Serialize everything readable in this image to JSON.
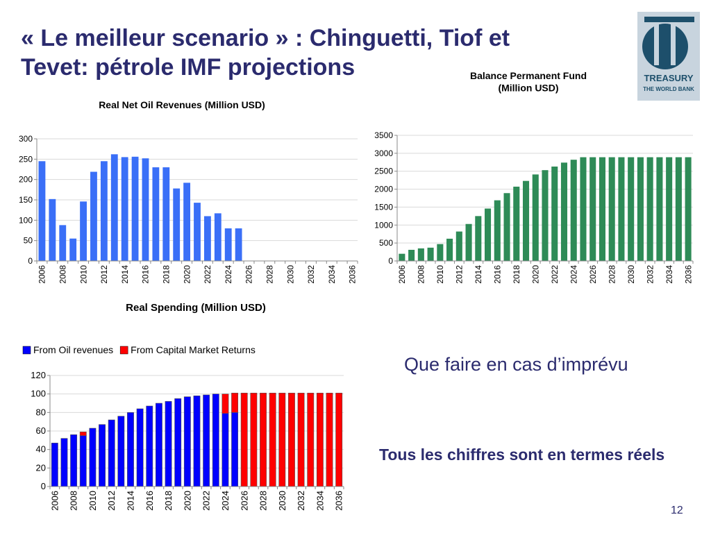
{
  "slide": {
    "title": "« Le meilleur scenario » :  Chinguetti, Tiof et\nTevet:  pétrole IMF projections",
    "subtext": "Que faire en cas d’imprévu",
    "note": "Tous les chiffres sont en termes réels",
    "page_number": "12"
  },
  "logo": {
    "line1": "TREASURY",
    "line2": "THE WORLD BANK",
    "bg_color": "#c8d4de",
    "mark_color": "#1d4f6b"
  },
  "chart_data": [
    {
      "id": "oil",
      "type": "bar",
      "title": "Real Net Oil Revenues (Million USD)",
      "xlabel": "",
      "ylabel": "",
      "categories": [
        "2006",
        "2007",
        "2008",
        "2009",
        "2010",
        "2011",
        "2012",
        "2013",
        "2014",
        "2015",
        "2016",
        "2017",
        "2018",
        "2019",
        "2020",
        "2021",
        "2022",
        "2023",
        "2024",
        "2025",
        "2026",
        "2027",
        "2028",
        "2029",
        "2030",
        "2031",
        "2032",
        "2033",
        "2034",
        "2035",
        "2036"
      ],
      "tick_labels": [
        "2006",
        "2008",
        "2010",
        "2012",
        "2014",
        "2016",
        "2018",
        "2020",
        "2022",
        "2024",
        "2026",
        "2028",
        "2030",
        "2032",
        "2034",
        "2036"
      ],
      "values": [
        245,
        152,
        88,
        55,
        146,
        219,
        245,
        262,
        255,
        256,
        252,
        230,
        230,
        178,
        192,
        143,
        110,
        117,
        80,
        80,
        0,
        0,
        0,
        0,
        0,
        0,
        0,
        0,
        0,
        0,
        0
      ],
      "ylim": [
        0,
        300
      ],
      "yticks": [
        0,
        50,
        100,
        150,
        200,
        250,
        300
      ],
      "color": "#3a6ff7",
      "grid": true
    },
    {
      "id": "fund",
      "type": "bar",
      "title": "Balance Permanent Fund\n(Million USD)",
      "xlabel": "",
      "ylabel": "",
      "categories": [
        "2006",
        "2007",
        "2008",
        "2009",
        "2010",
        "2011",
        "2012",
        "2013",
        "2014",
        "2015",
        "2016",
        "2017",
        "2018",
        "2019",
        "2020",
        "2021",
        "2022",
        "2023",
        "2024",
        "2025",
        "2026",
        "2027",
        "2028",
        "2029",
        "2030",
        "2031",
        "2032",
        "2033",
        "2034",
        "2035",
        "2036"
      ],
      "tick_labels": [
        "2006",
        "2008",
        "2010",
        "2012",
        "2014",
        "2016",
        "2018",
        "2020",
        "2022",
        "2024",
        "2026",
        "2028",
        "2030",
        "2032",
        "2034",
        "2036"
      ],
      "values": [
        200,
        310,
        350,
        370,
        470,
        620,
        820,
        1030,
        1250,
        1460,
        1690,
        1890,
        2070,
        2230,
        2410,
        2530,
        2630,
        2740,
        2820,
        2890,
        2890,
        2890,
        2890,
        2890,
        2890,
        2890,
        2890,
        2890,
        2890,
        2890,
        2890
      ],
      "ylim": [
        0,
        3500
      ],
      "yticks": [
        0,
        500,
        1000,
        1500,
        2000,
        2500,
        3000,
        3500
      ],
      "color": "#2e8b57",
      "grid": true
    },
    {
      "id": "spend",
      "type": "bar",
      "stacked": true,
      "title": "Real Spending (Million USD)",
      "xlabel": "",
      "ylabel": "",
      "legend_position": "top-left",
      "categories": [
        "2006",
        "2007",
        "2008",
        "2009",
        "2010",
        "2011",
        "2012",
        "2013",
        "2014",
        "2015",
        "2016",
        "2017",
        "2018",
        "2019",
        "2020",
        "2021",
        "2022",
        "2023",
        "2024",
        "2025",
        "2026",
        "2027",
        "2028",
        "2029",
        "2030",
        "2031",
        "2032",
        "2033",
        "2034",
        "2035",
        "2036"
      ],
      "tick_labels": [
        "2006",
        "2008",
        "2010",
        "2012",
        "2014",
        "2016",
        "2018",
        "2020",
        "2022",
        "2024",
        "2026",
        "2028",
        "2030",
        "2032",
        "2034",
        "2036"
      ],
      "series": [
        {
          "name": "From Oil revenues",
          "color": "#0000ff",
          "values": [
            47,
            52,
            56,
            55,
            63,
            67,
            72,
            76,
            80,
            84,
            87,
            90,
            92,
            95,
            97,
            98,
            99,
            100,
            79,
            80,
            0,
            0,
            0,
            0,
            0,
            0,
            0,
            0,
            0,
            0,
            0
          ]
        },
        {
          "name": "From Capital Market Returns",
          "color": "#ff0000",
          "values": [
            0,
            0,
            0,
            4,
            0,
            0,
            0,
            0,
            0,
            0,
            0,
            0,
            0,
            0,
            0,
            0,
            0,
            0,
            21,
            21,
            101,
            101,
            101,
            101,
            101,
            101,
            101,
            101,
            101,
            101,
            101
          ]
        }
      ],
      "ylim": [
        0,
        120
      ],
      "yticks": [
        0,
        20,
        40,
        60,
        80,
        100,
        120
      ],
      "grid": true
    }
  ]
}
